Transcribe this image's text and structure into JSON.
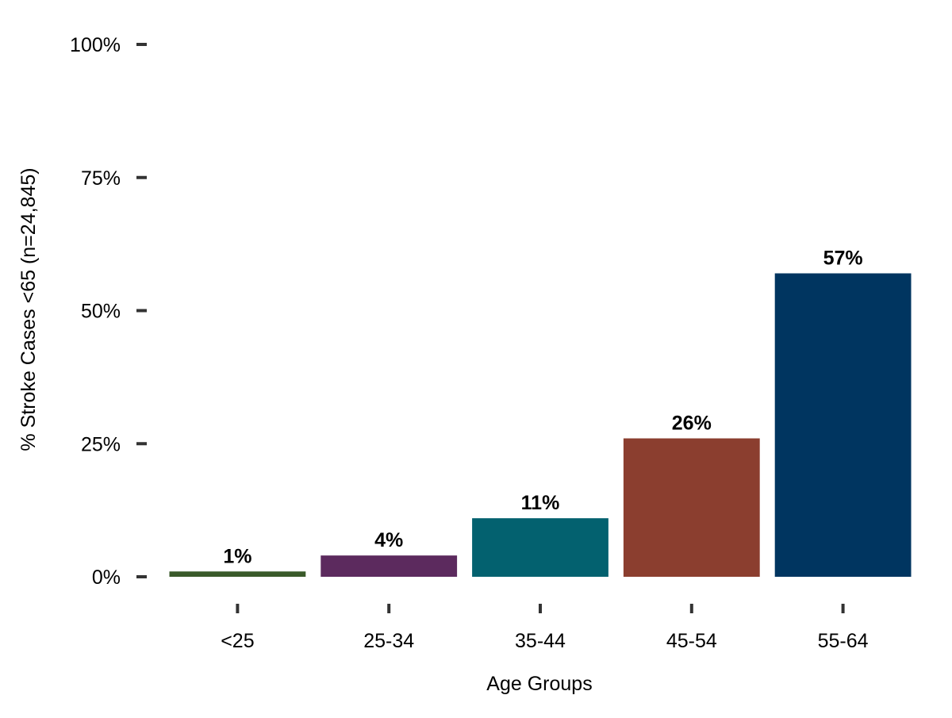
{
  "chart_data": {
    "type": "bar",
    "title": "",
    "xlabel": "Age Groups",
    "ylabel": "% Stroke Cases <65 (n=24,845)",
    "categories": [
      "<25",
      "25-34",
      "35-44",
      "45-54",
      "55-64"
    ],
    "values": [
      1,
      4,
      11,
      26,
      57
    ],
    "data_labels": [
      "1%",
      "4%",
      "11%",
      "26%",
      "57%"
    ],
    "colors": [
      "#3a5a2a",
      "#5c2a5e",
      "#03616f",
      "#8b3e2f",
      "#003560"
    ],
    "ylim": [
      0,
      100
    ],
    "yticks": [
      0,
      25,
      50,
      75,
      100
    ],
    "ytick_labels": [
      "0%",
      "25%",
      "50%",
      "75%",
      "100%"
    ],
    "grid": false,
    "legend": "none"
  }
}
